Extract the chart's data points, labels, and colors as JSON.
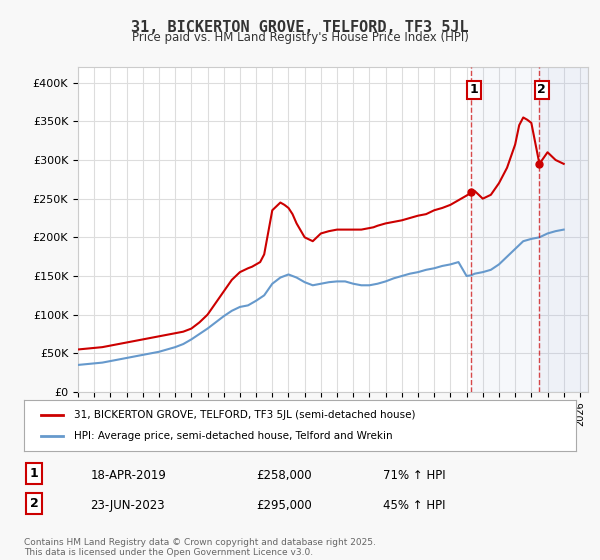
{
  "title": "31, BICKERTON GROVE, TELFORD, TF3 5JL",
  "subtitle": "Price paid vs. HM Land Registry's House Price Index (HPI)",
  "red_label": "31, BICKERTON GROVE, TELFORD, TF3 5JL (semi-detached house)",
  "blue_label": "HPI: Average price, semi-detached house, Telford and Wrekin",
  "annotation1_date": "18-APR-2019",
  "annotation1_price": "£258,000",
  "annotation1_hpi": "71% ↑ HPI",
  "annotation2_date": "23-JUN-2023",
  "annotation2_price": "£295,000",
  "annotation2_hpi": "45% ↑ HPI",
  "vline1_x": 2019.3,
  "vline2_x": 2023.5,
  "ylim_min": 0,
  "ylim_max": 420000,
  "xlim_min": 1995,
  "xlim_max": 2026.5,
  "yticks": [
    0,
    50000,
    100000,
    150000,
    200000,
    250000,
    300000,
    350000,
    400000
  ],
  "ytick_labels": [
    "£0",
    "£50K",
    "£100K",
    "£150K",
    "£200K",
    "£250K",
    "£300K",
    "£350K",
    "£400K"
  ],
  "footer": "Contains HM Land Registry data © Crown copyright and database right 2025.\nThis data is licensed under the Open Government Licence v3.0.",
  "bg_color": "#f8f8f8",
  "plot_bg_color": "#ffffff",
  "grid_color": "#dddddd",
  "red_color": "#cc0000",
  "blue_color": "#6699cc",
  "vline_color": "#cc0000",
  "marker1_x": 2019.3,
  "marker1_y": 258000,
  "marker2_x": 2023.5,
  "marker2_y": 295000,
  "red_x": [
    1995.0,
    1995.5,
    1996.0,
    1996.5,
    1997.0,
    1997.5,
    1998.0,
    1998.5,
    1999.0,
    1999.5,
    2000.0,
    2000.5,
    2001.0,
    2001.5,
    2002.0,
    2002.5,
    2003.0,
    2003.5,
    2004.0,
    2004.5,
    2005.0,
    2005.5,
    2005.75,
    2006.0,
    2006.25,
    2006.5,
    2007.0,
    2007.25,
    2007.5,
    2007.75,
    2008.0,
    2008.25,
    2008.5,
    2009.0,
    2009.5,
    2010.0,
    2010.5,
    2011.0,
    2011.5,
    2012.0,
    2012.5,
    2013.0,
    2013.25,
    2013.5,
    2014.0,
    2014.5,
    2015.0,
    2015.5,
    2016.0,
    2016.5,
    2017.0,
    2017.5,
    2018.0,
    2018.5,
    2019.0,
    2019.3,
    2019.5,
    2020.0,
    2020.5,
    2021.0,
    2021.5,
    2022.0,
    2022.25,
    2022.5,
    2022.75,
    2023.0,
    2023.5,
    2024.0,
    2024.5,
    2025.0
  ],
  "red_y": [
    55000,
    56000,
    57000,
    58000,
    60000,
    62000,
    64000,
    66000,
    68000,
    70000,
    72000,
    74000,
    76000,
    78000,
    82000,
    90000,
    100000,
    115000,
    130000,
    145000,
    155000,
    160000,
    162000,
    165000,
    168000,
    178000,
    235000,
    240000,
    245000,
    242000,
    238000,
    230000,
    218000,
    200000,
    195000,
    205000,
    208000,
    210000,
    210000,
    210000,
    210000,
    212000,
    213000,
    215000,
    218000,
    220000,
    222000,
    225000,
    228000,
    230000,
    235000,
    238000,
    242000,
    248000,
    254000,
    258000,
    260000,
    250000,
    255000,
    270000,
    290000,
    320000,
    345000,
    355000,
    352000,
    348000,
    295000,
    310000,
    300000,
    295000
  ],
  "blue_x": [
    1995.0,
    1995.5,
    1996.0,
    1996.5,
    1997.0,
    1997.5,
    1998.0,
    1998.5,
    1999.0,
    1999.5,
    2000.0,
    2000.5,
    2001.0,
    2001.5,
    2002.0,
    2002.5,
    2003.0,
    2003.5,
    2004.0,
    2004.5,
    2005.0,
    2005.5,
    2006.0,
    2006.5,
    2007.0,
    2007.5,
    2008.0,
    2008.5,
    2009.0,
    2009.5,
    2010.0,
    2010.5,
    2011.0,
    2011.5,
    2012.0,
    2012.5,
    2013.0,
    2013.5,
    2014.0,
    2014.5,
    2015.0,
    2015.5,
    2016.0,
    2016.5,
    2017.0,
    2017.5,
    2018.0,
    2018.5,
    2019.0,
    2019.3,
    2019.5,
    2020.0,
    2020.5,
    2021.0,
    2021.5,
    2022.0,
    2022.5,
    2023.0,
    2023.5,
    2024.0,
    2024.5,
    2025.0
  ],
  "blue_y": [
    35000,
    36000,
    37000,
    38000,
    40000,
    42000,
    44000,
    46000,
    48000,
    50000,
    52000,
    55000,
    58000,
    62000,
    68000,
    75000,
    82000,
    90000,
    98000,
    105000,
    110000,
    112000,
    118000,
    125000,
    140000,
    148000,
    152000,
    148000,
    142000,
    138000,
    140000,
    142000,
    143000,
    143000,
    140000,
    138000,
    138000,
    140000,
    143000,
    147000,
    150000,
    153000,
    155000,
    158000,
    160000,
    163000,
    165000,
    168000,
    150000,
    151000,
    153000,
    155000,
    158000,
    165000,
    175000,
    185000,
    195000,
    198000,
    200000,
    205000,
    208000,
    210000
  ]
}
